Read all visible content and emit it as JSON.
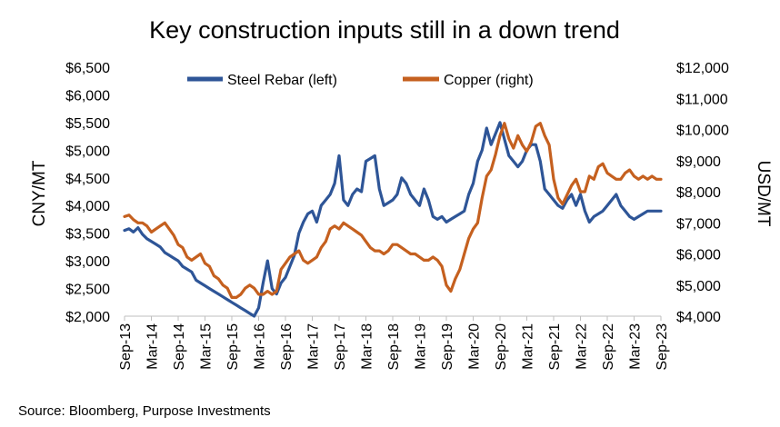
{
  "chart_data": {
    "type": "line",
    "title": "Key construction inputs still in a down trend",
    "ylabel_left": "CNY/MT",
    "ylabel_right": "USD/MT",
    "ylim_left": [
      2000,
      6500
    ],
    "ylim_right": [
      4000,
      12000
    ],
    "yticks_left": [
      "$2,000",
      "$2,500",
      "$3,000",
      "$3,500",
      "$4,000",
      "$4,500",
      "$5,000",
      "$5,500",
      "$6,000",
      "$6,500"
    ],
    "yticks_right": [
      "$4,000",
      "$5,000",
      "$6,000",
      "$7,000",
      "$8,000",
      "$9,000",
      "$10,000",
      "$11,000",
      "$12,000"
    ],
    "x_start": "2013-09",
    "x_end": "2023-09",
    "x_tick_labels": [
      "Sep-13",
      "Mar-14",
      "Sep-14",
      "Mar-15",
      "Sep-15",
      "Mar-16",
      "Sep-16",
      "Mar-17",
      "Sep-17",
      "Mar-18",
      "Sep-18",
      "Mar-19",
      "Sep-19",
      "Mar-20",
      "Sep-20",
      "Mar-21",
      "Sep-21",
      "Mar-22",
      "Sep-22",
      "Mar-23",
      "Sep-23"
    ],
    "legend_position": "top-center",
    "series": [
      {
        "name": "Steel Rebar (left)",
        "axis": "left",
        "color": "#2E5597",
        "x": [
          0,
          1,
          2,
          3,
          4,
          5,
          6,
          7,
          8,
          9,
          10,
          11,
          12,
          13,
          14,
          15,
          16,
          17,
          18,
          19,
          20,
          21,
          22,
          23,
          24,
          25,
          26,
          27,
          28,
          29,
          30,
          31,
          32,
          33,
          34,
          35,
          36,
          37,
          38,
          39,
          40,
          41,
          42,
          43,
          44,
          45,
          46,
          47,
          48,
          49,
          50,
          51,
          52,
          53,
          54,
          55,
          56,
          57,
          58,
          59,
          60,
          61,
          62,
          63,
          64,
          65,
          66,
          67,
          68,
          69,
          70,
          71,
          72,
          73,
          74,
          75,
          76,
          77,
          78,
          79,
          80,
          81,
          82,
          83,
          84,
          85,
          86,
          87,
          88,
          89,
          90,
          91,
          92,
          93,
          94,
          95,
          96,
          97,
          98,
          99,
          100,
          101,
          102,
          103,
          104,
          105,
          106,
          107,
          108,
          109,
          110,
          111,
          112,
          113,
          114,
          115,
          116,
          117,
          118,
          119,
          120
        ],
        "values": [
          3550,
          3580,
          3520,
          3600,
          3480,
          3400,
          3350,
          3300,
          3250,
          3150,
          3100,
          3050,
          3000,
          2900,
          2850,
          2800,
          2650,
          2600,
          2550,
          2500,
          2450,
          2400,
          2350,
          2300,
          2250,
          2200,
          2150,
          2100,
          2050,
          2000,
          2150,
          2600,
          3000,
          2500,
          2400,
          2600,
          2700,
          2900,
          3100,
          3500,
          3700,
          3850,
          3900,
          3700,
          4000,
          4100,
          4200,
          4400,
          4900,
          4100,
          4000,
          4200,
          4300,
          4250,
          4800,
          4850,
          4900,
          4300,
          4000,
          4050,
          4100,
          4200,
          4500,
          4400,
          4200,
          4100,
          4000,
          4300,
          4100,
          3800,
          3750,
          3800,
          3700,
          3750,
          3800,
          3850,
          3900,
          4200,
          4400,
          4800,
          5000,
          5400,
          5100,
          5300,
          5500,
          5200,
          4900,
          4800,
          4700,
          4800,
          5000,
          5100,
          5100,
          4800,
          4300,
          4200,
          4100,
          4000,
          3950,
          4100,
          4200,
          4000,
          4200,
          3900,
          3700,
          3800,
          3850,
          3900,
          4000,
          4100,
          4200,
          4000,
          3900,
          3800,
          3750,
          3800,
          3850,
          3900,
          3900,
          3900,
          3900
        ]
      },
      {
        "name": "Copper (right)",
        "axis": "right",
        "color": "#C5601F",
        "x": [
          0,
          1,
          2,
          3,
          4,
          5,
          6,
          7,
          8,
          9,
          10,
          11,
          12,
          13,
          14,
          15,
          16,
          17,
          18,
          19,
          20,
          21,
          22,
          23,
          24,
          25,
          26,
          27,
          28,
          29,
          30,
          31,
          32,
          33,
          34,
          35,
          36,
          37,
          38,
          39,
          40,
          41,
          42,
          43,
          44,
          45,
          46,
          47,
          48,
          49,
          50,
          51,
          52,
          53,
          54,
          55,
          56,
          57,
          58,
          59,
          60,
          61,
          62,
          63,
          64,
          65,
          66,
          67,
          68,
          69,
          70,
          71,
          72,
          73,
          74,
          75,
          76,
          77,
          78,
          79,
          80,
          81,
          82,
          83,
          84,
          85,
          86,
          87,
          88,
          89,
          90,
          91,
          92,
          93,
          94,
          95,
          96,
          97,
          98,
          99,
          100,
          101,
          102,
          103,
          104,
          105,
          106,
          107,
          108,
          109,
          110,
          111,
          112,
          113,
          114,
          115,
          116,
          117,
          118,
          119,
          120
        ],
        "values": [
          7200,
          7250,
          7100,
          7000,
          7000,
          6900,
          6700,
          6800,
          6900,
          7000,
          6800,
          6600,
          6300,
          6200,
          5900,
          5800,
          5900,
          6000,
          5700,
          5600,
          5300,
          5200,
          5000,
          4900,
          4600,
          4600,
          4700,
          4900,
          5000,
          4900,
          4700,
          4700,
          4800,
          4700,
          4800,
          5500,
          5700,
          5900,
          6000,
          6100,
          5800,
          5700,
          5800,
          5900,
          6200,
          6400,
          6800,
          6900,
          6800,
          7000,
          6900,
          6800,
          6700,
          6600,
          6400,
          6200,
          6100,
          6100,
          6000,
          6100,
          6300,
          6300,
          6200,
          6100,
          6000,
          6000,
          5900,
          5800,
          5800,
          5900,
          5800,
          5600,
          5000,
          4800,
          5200,
          5500,
          6000,
          6500,
          6800,
          7000,
          7800,
          8500,
          8700,
          9200,
          9800,
          10200,
          9700,
          9400,
          9800,
          9500,
          9300,
          9600,
          10100,
          10200,
          9800,
          9500,
          8400,
          7800,
          7600,
          7900,
          8200,
          8400,
          8000,
          8000,
          8500,
          8400,
          8800,
          8900,
          8600,
          8500,
          8400,
          8400,
          8600,
          8700,
          8500,
          8400,
          8500,
          8400,
          8500,
          8400,
          8400
        ]
      }
    ]
  },
  "source": "Source: Bloomberg, Purpose Investments"
}
